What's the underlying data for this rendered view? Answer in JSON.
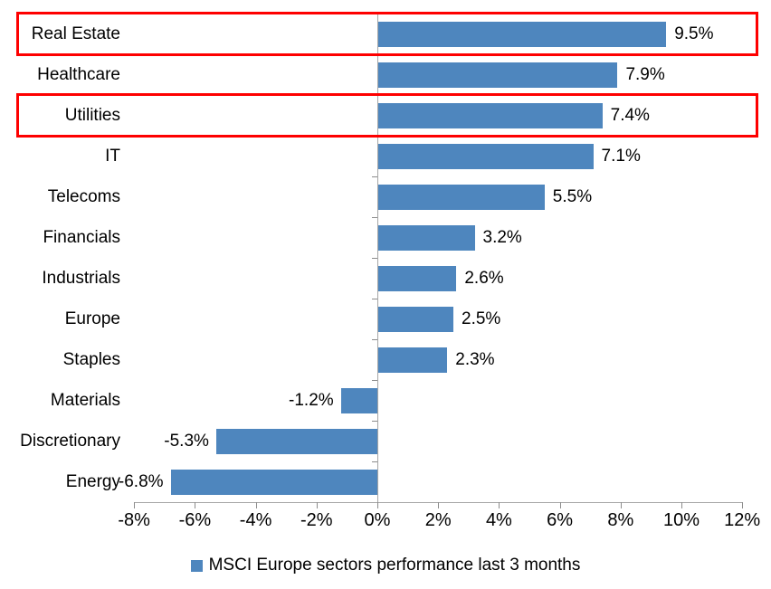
{
  "chart_data": {
    "type": "bar",
    "orientation": "horizontal",
    "title": "",
    "xlabel": "",
    "ylabel": "",
    "categories": [
      "Real Estate",
      "Healthcare",
      "Utilities",
      "IT",
      "Telecoms",
      "Financials",
      "Industrials",
      "Europe",
      "Staples",
      "Materials",
      "Discretionary",
      "Energy"
    ],
    "values": [
      9.5,
      7.9,
      7.4,
      7.1,
      5.5,
      3.2,
      2.6,
      2.5,
      2.3,
      -1.2,
      -5.3,
      -6.8
    ],
    "value_labels": [
      "9.5%",
      "7.9%",
      "7.4%",
      "7.1%",
      "5.5%",
      "3.2%",
      "2.6%",
      "2.5%",
      "2.3%",
      "-1.2%",
      "-5.3%",
      "-6.8%"
    ],
    "series_name": "MSCI Europe sectors performance last 3 months",
    "xlim": [
      -8,
      12
    ],
    "x_ticks": [
      -8,
      -6,
      -4,
      -2,
      0,
      2,
      4,
      6,
      8,
      10,
      12
    ],
    "x_tick_labels": [
      "-8%",
      "-6%",
      "-4%",
      "-2%",
      "0%",
      "2%",
      "4%",
      "6%",
      "8%",
      "10%",
      "12%"
    ],
    "grid": false,
    "legend_position": "bottom-center",
    "bar_color": "#4e86be",
    "axis_color": "#a6a6a6",
    "highlighted_categories": [
      "Real Estate",
      "Utilities"
    ],
    "highlight_color": "#fe0000"
  },
  "legend": {
    "label": "MSCI Europe sectors performance last 3 months",
    "marker_color": "#4e86be"
  }
}
